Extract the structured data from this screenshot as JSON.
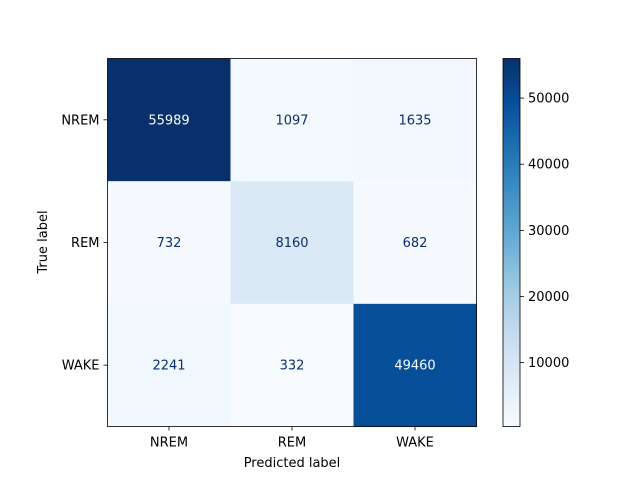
{
  "chart_data": {
    "type": "heatmap",
    "title": "",
    "xlabel": "Predicted label",
    "ylabel": "True label",
    "x_categories": [
      "NREM",
      "REM",
      "WAKE"
    ],
    "y_categories": [
      "NREM",
      "REM",
      "WAKE"
    ],
    "values": [
      [
        55989,
        1097,
        1635
      ],
      [
        732,
        8160,
        682
      ],
      [
        2241,
        332,
        49460
      ]
    ],
    "colormap": "Blues",
    "colorbar": {
      "range": [
        332,
        55989
      ],
      "ticks": [
        10000,
        20000,
        30000,
        40000,
        50000
      ]
    },
    "grid": false
  }
}
